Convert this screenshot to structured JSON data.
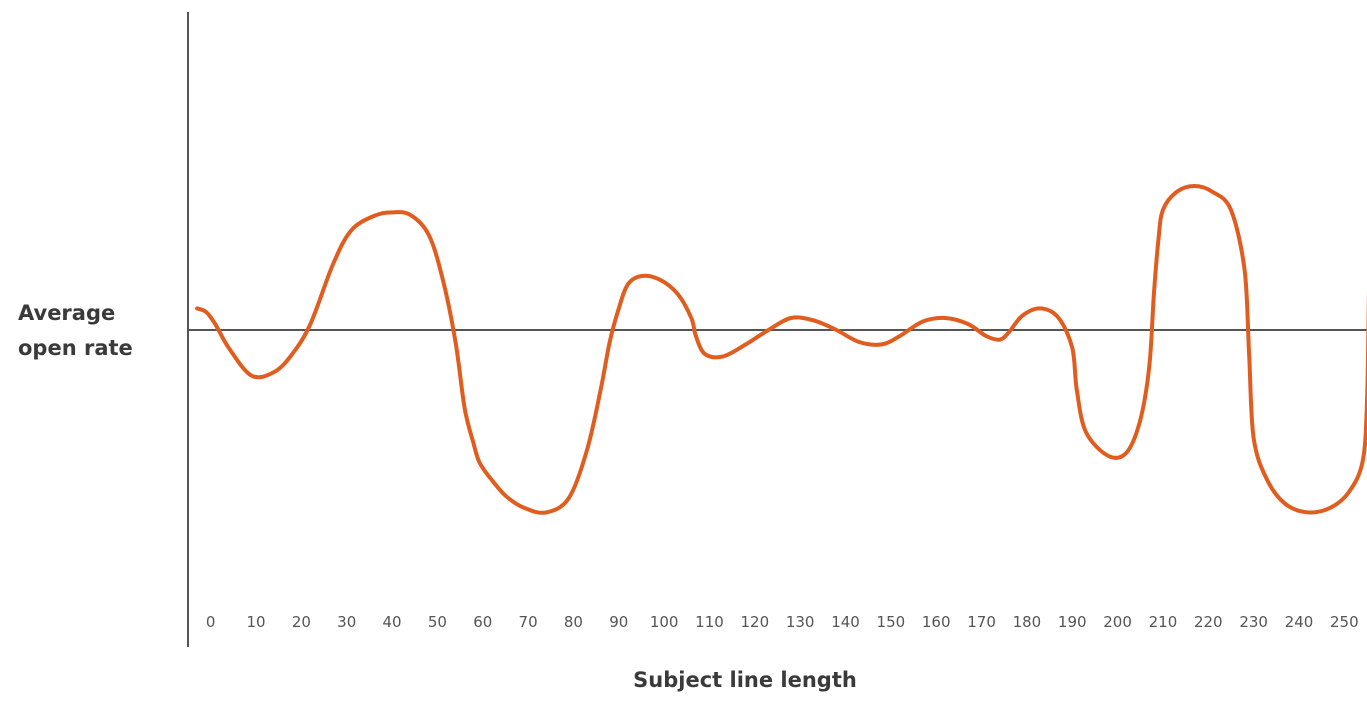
{
  "chart_data": {
    "type": "line",
    "title": "",
    "xlabel": "Subject line length",
    "ylabel_lines": [
      "Average",
      "open rate"
    ],
    "x_ticks": [
      "0",
      "10",
      "20",
      "30",
      "40",
      "50",
      "60",
      "70",
      "80",
      "90",
      "100",
      "110",
      "120",
      "130",
      "140",
      "150",
      "160",
      "170",
      "180",
      "190",
      "200",
      "210",
      "220",
      "230",
      "240",
      "250"
    ],
    "xlim": [
      -5,
      255
    ],
    "ylim": [
      -1.5,
      1.5
    ],
    "baseline": 0,
    "grid": false,
    "legend": "none",
    "line_color": "#e05d1f",
    "axis_color": "#555555",
    "series": [
      {
        "x": [
          -3,
          -1,
          1,
          4,
          9,
          14,
          18,
          22,
          27,
          31,
          36,
          40,
          44,
          48,
          51,
          54,
          56,
          58,
          59,
          60,
          62,
          65,
          69,
          74,
          79,
          83,
          86,
          88,
          90,
          92,
          95,
          99,
          103,
          106,
          107,
          109,
          113,
          118,
          123,
          128,
          133,
          138,
          143,
          148,
          152,
          157,
          162,
          167,
          171,
          174,
          176,
          179,
          183,
          187,
          190,
          191,
          193,
          198,
          202,
          205,
          207,
          208,
          209,
          210,
          213,
          217,
          221,
          225,
          228,
          229,
          230,
          233,
          237,
          242,
          247,
          251,
          254,
          255,
          255.5
        ],
        "y": [
          0.18,
          0.15,
          0.05,
          -0.15,
          -0.38,
          -0.35,
          -0.2,
          0.05,
          0.55,
          0.83,
          0.95,
          0.98,
          0.96,
          0.8,
          0.45,
          -0.1,
          -0.65,
          -0.95,
          -1.08,
          -1.15,
          -1.25,
          -1.38,
          -1.48,
          -1.52,
          -1.4,
          -1.0,
          -0.5,
          -0.1,
          0.18,
          0.38,
          0.45,
          0.42,
          0.3,
          0.1,
          -0.05,
          -0.2,
          -0.22,
          -0.12,
          0.0,
          0.1,
          0.08,
          0.0,
          -0.1,
          -0.12,
          -0.05,
          0.07,
          0.1,
          0.05,
          -0.05,
          -0.08,
          -0.02,
          0.12,
          0.18,
          0.1,
          -0.15,
          -0.5,
          -0.85,
          -1.05,
          -1.02,
          -0.75,
          -0.3,
          0.3,
          0.75,
          1.0,
          1.15,
          1.2,
          1.15,
          1.0,
          0.5,
          -0.2,
          -0.9,
          -1.25,
          -1.45,
          -1.52,
          -1.48,
          -1.35,
          -1.1,
          -0.6,
          0.5
        ]
      }
    ]
  }
}
